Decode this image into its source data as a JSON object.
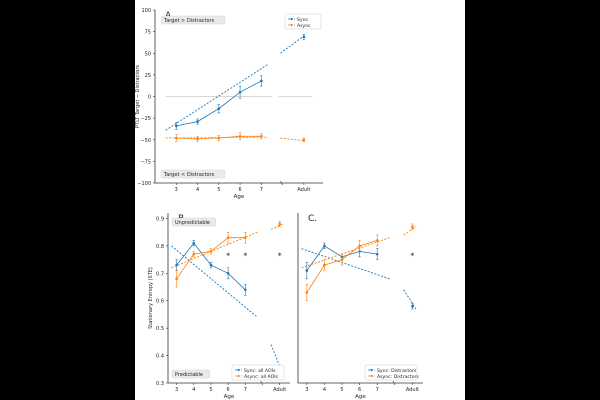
{
  "chart_data": [
    {
      "type": "line",
      "panel_label": "A.",
      "xlabel": "Age",
      "ylabel": "PTLT Target − Distractors",
      "x_tick_labels": [
        "3",
        "4",
        "5",
        "6",
        "7",
        "Adult"
      ],
      "y_ticks": [
        100,
        75,
        50,
        25,
        0,
        -25,
        -50,
        -75,
        -100
      ],
      "y_tick_labels": [
        "100",
        "75",
        "50",
        "25",
        "0",
        "−25",
        "−50",
        "−75",
        "−100"
      ],
      "ylim": [
        -100,
        100
      ],
      "annotations": [
        "Target > Distractors",
        "Target < Distractors"
      ],
      "legend_position": "top-right",
      "series": [
        {
          "name": "Sync",
          "color": "#1f77b4",
          "values": [
            -34,
            -29,
            -14,
            5,
            18,
            69
          ],
          "err": [
            4,
            3,
            5,
            7,
            6,
            3
          ],
          "trend": [
            [
              2.5,
              -39
            ],
            [
              7.3,
              37
            ],
            [
              7.9,
              50
            ],
            [
              9.0,
              70
            ]
          ]
        },
        {
          "name": "Async",
          "color": "#ff7f0e",
          "values": [
            -48,
            -49,
            -48,
            -46,
            -46,
            -50
          ],
          "err": [
            4,
            3,
            3,
            4,
            3,
            2
          ],
          "trend": [
            [
              2.5,
              -48
            ],
            [
              7.3,
              -47
            ],
            [
              7.9,
              -48
            ],
            [
              9.0,
              -51
            ]
          ]
        }
      ],
      "reference_lines": [
        {
          "y": 0,
          "segments": [
            [
              2.5,
              7.5
            ],
            [
              7.8,
              9.4
            ]
          ]
        }
      ]
    },
    {
      "type": "line",
      "panel_label": "B.",
      "xlabel": "Age",
      "ylabel": "Stationary Entropy (STE)",
      "x_tick_labels": [
        "3",
        "4",
        "5",
        "6",
        "7",
        "Adult"
      ],
      "y_ticks": [
        0.9,
        0.8,
        0.7,
        0.6,
        0.5,
        0.4,
        0.3
      ],
      "y_tick_labels": [
        "0.9",
        "0.8",
        "0.7",
        "0.6",
        "0.5",
        "0.4",
        "0.3"
      ],
      "ylim": [
        0.3,
        0.92
      ],
      "annotations": [
        "Unpredictable",
        "Predictable"
      ],
      "significance_markers": [
        "*",
        "*",
        "*"
      ],
      "legend_position": "bottom-right",
      "series": [
        {
          "name": "Sync: all AOIs",
          "color": "#1f77b4",
          "values": [
            0.73,
            0.81,
            0.73,
            0.7,
            0.64,
            0.33
          ],
          "err": [
            0.02,
            0.01,
            0.01,
            0.02,
            0.02,
            0.01
          ],
          "trend": [
            [
              2.7,
              0.8
            ],
            [
              7.7,
              0.54
            ],
            [
              8.5,
              0.44
            ],
            [
              9.2,
              0.33
            ]
          ]
        },
        {
          "name": "Async: all AOIs",
          "color": "#ff7f0e",
          "values": [
            0.68,
            0.77,
            0.78,
            0.83,
            0.83,
            0.88
          ],
          "err": [
            0.03,
            0.01,
            0.01,
            0.02,
            0.02,
            0.01
          ],
          "trend": [
            [
              2.7,
              0.72
            ],
            [
              7.7,
              0.85
            ],
            [
              8.5,
              0.86
            ],
            [
              9.2,
              0.88
            ]
          ]
        }
      ]
    },
    {
      "type": "line",
      "panel_label": "C.",
      "xlabel": "Age",
      "x_tick_labels": [
        "3",
        "4",
        "5",
        "6",
        "7",
        "Adult"
      ],
      "ylim": [
        0.3,
        0.92
      ],
      "significance_markers": [
        "*"
      ],
      "legend_position": "bottom-right",
      "series": [
        {
          "name": "Sync: Distractors",
          "color": "#1f77b4",
          "values": [
            0.71,
            0.8,
            0.76,
            0.78,
            0.77,
            0.58
          ],
          "err": [
            0.03,
            0.01,
            0.01,
            0.02,
            0.02,
            0.01
          ],
          "trend": [
            [
              2.7,
              0.79
            ],
            [
              7.7,
              0.68
            ],
            [
              8.5,
              0.64
            ],
            [
              9.2,
              0.57
            ]
          ]
        },
        {
          "name": "Async: Distractors",
          "color": "#ff7f0e",
          "values": [
            0.63,
            0.73,
            0.75,
            0.8,
            0.82,
            0.87
          ],
          "err": [
            0.03,
            0.02,
            0.02,
            0.02,
            0.02,
            0.01
          ],
          "trend": [
            [
              2.7,
              0.72
            ],
            [
              7.7,
              0.83
            ],
            [
              8.5,
              0.84
            ],
            [
              9.2,
              0.87
            ]
          ]
        }
      ]
    }
  ]
}
